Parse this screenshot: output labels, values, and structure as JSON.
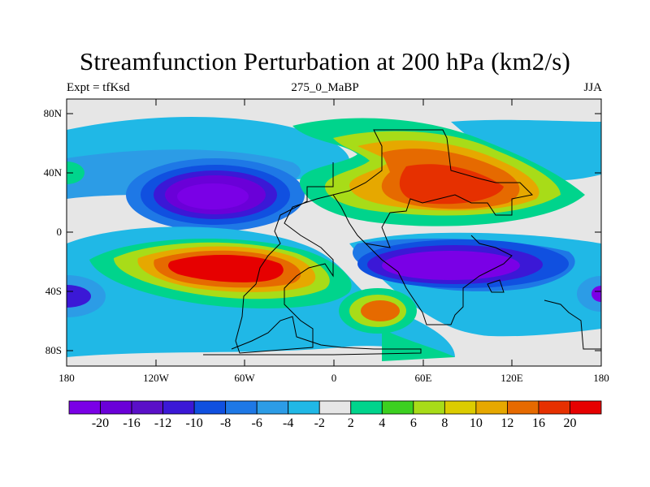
{
  "title": "Streamfunction Perturbation at 200 hPa (km2/s)",
  "subtitle_left": "Expt = tfKsd",
  "subtitle_center": "275_0_MaBP",
  "subtitle_right": "JJA",
  "lat_labels": [
    "80N",
    "40N",
    "0",
    "40S",
    "80S"
  ],
  "lon_labels": [
    "180",
    "120W",
    "60W",
    "0",
    "60E",
    "120E",
    "180"
  ],
  "colorbar": {
    "colors": [
      "#7a00e6",
      "#6a00d8",
      "#5a10c8",
      "#3b18d6",
      "#1050e0",
      "#1e78e6",
      "#2c9ce6",
      "#20b8e6",
      "#e6e6e6",
      "#00d48c",
      "#3cd020",
      "#a8dc18",
      "#dccc00",
      "#e6a800",
      "#e66a00",
      "#e63000",
      "#e60000"
    ],
    "labels": [
      "-20",
      "-16",
      "-12",
      "-10",
      "-8",
      "-6",
      "-4",
      "-2",
      "2",
      "4",
      "6",
      "8",
      "10",
      "12",
      "16",
      "20"
    ]
  }
}
